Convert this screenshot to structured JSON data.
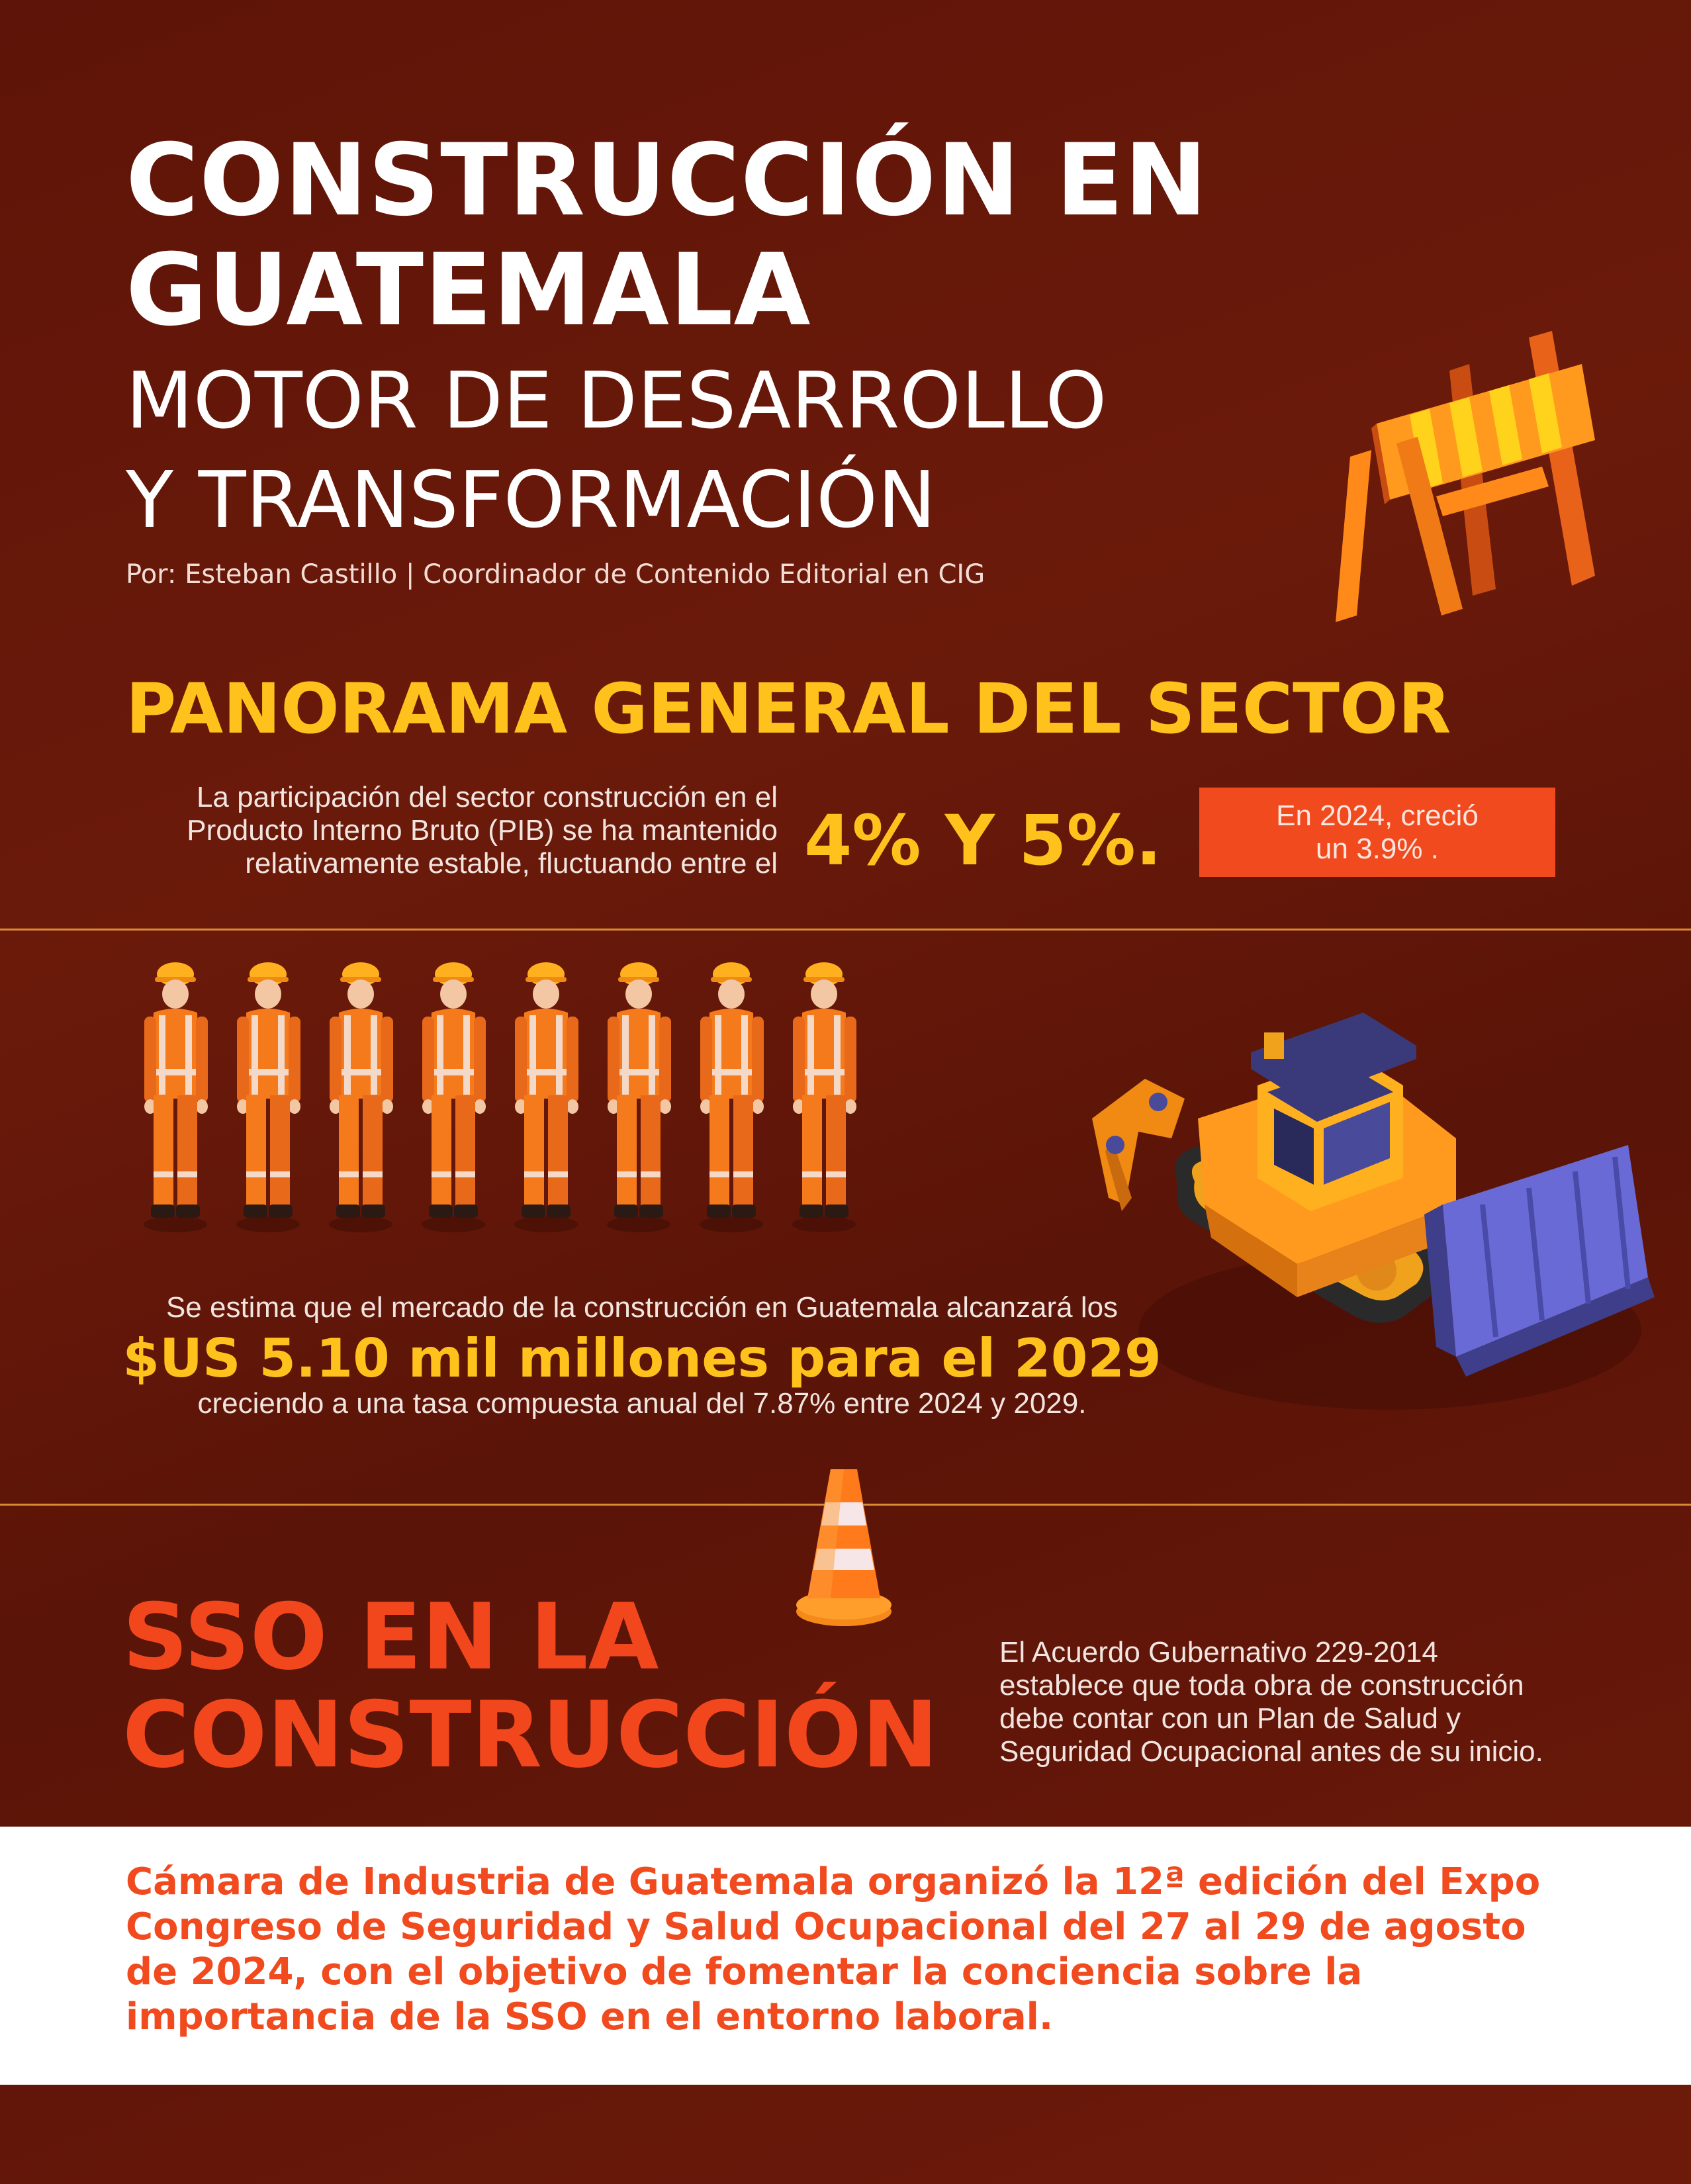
{
  "header": {
    "title_line1": "CONSTRUCCIÓN EN",
    "title_line2": "GUATEMALA",
    "subtitle_line1": "MOTOR DE DESARROLLO",
    "subtitle_line2": "Y TRANSFORMACIÓN",
    "byline": "Por: Esteban Castillo | Coordinador de Contenido Editorial en CIG"
  },
  "panorama": {
    "title": "PANORAMA GENERAL DEL SECTOR",
    "pib_line1": "La participación del sector construcción en el",
    "pib_line2": "Producto Interno Bruto (PIB) se ha mantenido",
    "pib_line3": "relativamente estable, fluctuando entre el",
    "pib_range": "4% Y 5%.",
    "badge_line1": "En 2024, creció",
    "badge_line2": "un 3.9% ."
  },
  "market": {
    "intro": "Se estima que el mercado de la construcción en Guatemala alcanzará los",
    "amount": "$US 5.10 mil millones para el 2029",
    "growth": "creciendo a una tasa compuesta anual del 7.87% entre 2024 y 2029.",
    "workers_count": 8
  },
  "sso": {
    "title_line1": "SSO EN LA",
    "title_line2": "CONSTRUCCIÓN",
    "text_line1": "El Acuerdo Gubernativo 229-2014",
    "text_line2": "establece que toda obra de construcción",
    "text_line3": "debe contar con un Plan de Salud y",
    "text_line4": "Seguridad Ocupacional antes de su inicio."
  },
  "footer_note": {
    "line1": "Cámara de Industria de Guatemala organizó la 12ª edición del Expo",
    "line2": "Congreso de Seguridad y Salud Ocupacional del 27 al 29 de agosto",
    "line3": "de 2024, con el objetivo de fomentar la conciencia sobre la",
    "line4": "importancia de la SSO en el entorno laboral."
  },
  "colors": {
    "background": "#5e1408",
    "accent_yellow": "#ffc21c",
    "accent_orange": "#f04a1e",
    "divider": "#d98a34",
    "text_light": "#f2e4df"
  },
  "illustrations": {
    "barrier": "construction-barrier-icon",
    "worker": "construction-worker-icon",
    "bulldozer": "bulldozer-icon",
    "cone": "traffic-cone-icon"
  }
}
